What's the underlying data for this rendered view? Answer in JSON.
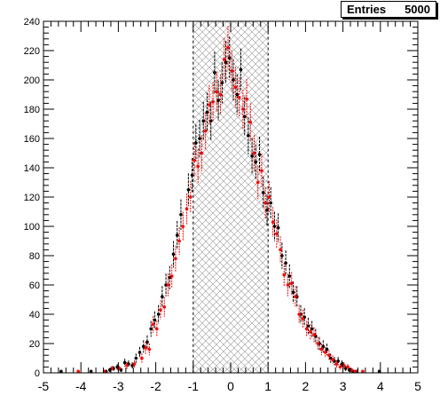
{
  "stats": {
    "label": "Entries",
    "value": "5000"
  },
  "chart_data": {
    "type": "scatter",
    "title": "",
    "xlabel": "",
    "ylabel": "",
    "xlim": [
      -5,
      5
    ],
    "ylim": [
      0,
      240
    ],
    "xticks": [
      -5,
      -4,
      -3,
      -2,
      -1,
      0,
      1,
      2,
      3,
      4,
      5
    ],
    "yticks": [
      0,
      20,
      40,
      60,
      80,
      100,
      120,
      140,
      160,
      180,
      200,
      220,
      240
    ],
    "grid": false,
    "highlight_band": {
      "x_from": -1,
      "x_to": 1,
      "style": "cross-hatch"
    },
    "series": [
      {
        "color": "#000000",
        "points": [
          {
            "x": -4.5,
            "y": 1
          },
          {
            "x": -3.7,
            "y": 1
          },
          {
            "x": -3.3,
            "y": 1
          },
          {
            "x": -3.2,
            "y": 2
          },
          {
            "x": -3.1,
            "y": 3
          },
          {
            "x": -3.0,
            "y": 4
          },
          {
            "x": -2.9,
            "y": 2
          },
          {
            "x": -2.8,
            "y": 7
          },
          {
            "x": -2.7,
            "y": 6
          },
          {
            "x": -2.6,
            "y": 5
          },
          {
            "x": -2.5,
            "y": 10
          },
          {
            "x": -2.4,
            "y": 14
          },
          {
            "x": -2.3,
            "y": 18
          },
          {
            "x": -2.2,
            "y": 21
          },
          {
            "x": -2.1,
            "y": 30
          },
          {
            "x": -2.0,
            "y": 36
          },
          {
            "x": -1.9,
            "y": 40
          },
          {
            "x": -1.8,
            "y": 52
          },
          {
            "x": -1.7,
            "y": 60
          },
          {
            "x": -1.6,
            "y": 65
          },
          {
            "x": -1.5,
            "y": 81
          },
          {
            "x": -1.4,
            "y": 94
          },
          {
            "x": -1.3,
            "y": 108
          },
          {
            "x": -1.1,
            "y": 125
          },
          {
            "x": -1.0,
            "y": 135
          },
          {
            "x": -0.9,
            "y": 157
          },
          {
            "x": -0.8,
            "y": 160
          },
          {
            "x": -0.7,
            "y": 172
          },
          {
            "x": -0.6,
            "y": 178
          },
          {
            "x": -0.5,
            "y": 172
          },
          {
            "x": -0.4,
            "y": 205
          },
          {
            "x": -0.3,
            "y": 186
          },
          {
            "x": -0.2,
            "y": 198
          },
          {
            "x": -0.1,
            "y": 212
          },
          {
            "x": 0.0,
            "y": 215
          },
          {
            "x": 0.1,
            "y": 200
          },
          {
            "x": 0.2,
            "y": 190
          },
          {
            "x": 0.3,
            "y": 207
          },
          {
            "x": 0.4,
            "y": 175
          },
          {
            "x": 0.5,
            "y": 162
          },
          {
            "x": 0.6,
            "y": 148
          },
          {
            "x": 0.7,
            "y": 144
          },
          {
            "x": 0.8,
            "y": 149
          },
          {
            "x": 0.9,
            "y": 123
          },
          {
            "x": 1.0,
            "y": 111
          },
          {
            "x": 1.1,
            "y": 116
          },
          {
            "x": 1.2,
            "y": 100
          },
          {
            "x": 1.3,
            "y": 99
          },
          {
            "x": 1.4,
            "y": 80
          },
          {
            "x": 1.5,
            "y": 75
          },
          {
            "x": 1.6,
            "y": 66
          },
          {
            "x": 1.7,
            "y": 55
          },
          {
            "x": 1.8,
            "y": 52
          },
          {
            "x": 1.9,
            "y": 40
          },
          {
            "x": 2.0,
            "y": 38
          },
          {
            "x": 2.1,
            "y": 32
          },
          {
            "x": 2.2,
            "y": 30
          },
          {
            "x": 2.3,
            "y": 25
          },
          {
            "x": 2.4,
            "y": 20
          },
          {
            "x": 2.5,
            "y": 18
          },
          {
            "x": 2.6,
            "y": 16
          },
          {
            "x": 2.7,
            "y": 10
          },
          {
            "x": 2.8,
            "y": 8
          },
          {
            "x": 2.9,
            "y": 8
          },
          {
            "x": 3.0,
            "y": 6
          },
          {
            "x": 3.1,
            "y": 3
          },
          {
            "x": 3.2,
            "y": 2
          },
          {
            "x": 3.3,
            "y": 1
          },
          {
            "x": 3.4,
            "y": 1
          },
          {
            "x": 4.0,
            "y": 1
          }
        ]
      },
      {
        "color": "#ff0000",
        "points": [
          {
            "x": -4.1,
            "y": 1
          },
          {
            "x": -3.4,
            "y": 1
          },
          {
            "x": -3.2,
            "y": 3
          },
          {
            "x": -3.0,
            "y": 3
          },
          {
            "x": -2.8,
            "y": 5
          },
          {
            "x": -2.6,
            "y": 6
          },
          {
            "x": -2.4,
            "y": 10
          },
          {
            "x": -2.3,
            "y": 17
          },
          {
            "x": -2.2,
            "y": 16
          },
          {
            "x": -2.1,
            "y": 33
          },
          {
            "x": -2.0,
            "y": 30
          },
          {
            "x": -1.9,
            "y": 43
          },
          {
            "x": -1.8,
            "y": 45
          },
          {
            "x": -1.7,
            "y": 60
          },
          {
            "x": -1.6,
            "y": 66
          },
          {
            "x": -1.5,
            "y": 78
          },
          {
            "x": -1.4,
            "y": 90
          },
          {
            "x": -1.3,
            "y": 100
          },
          {
            "x": -1.2,
            "y": 112
          },
          {
            "x": -1.1,
            "y": 120
          },
          {
            "x": -1.0,
            "y": 145
          },
          {
            "x": -0.9,
            "y": 141
          },
          {
            "x": -0.8,
            "y": 150
          },
          {
            "x": -0.7,
            "y": 165
          },
          {
            "x": -0.6,
            "y": 183
          },
          {
            "x": -0.5,
            "y": 185
          },
          {
            "x": -0.4,
            "y": 192
          },
          {
            "x": -0.3,
            "y": 190
          },
          {
            "x": -0.2,
            "y": 214
          },
          {
            "x": -0.1,
            "y": 222
          },
          {
            "x": 0.0,
            "y": 206
          },
          {
            "x": 0.1,
            "y": 195
          },
          {
            "x": 0.2,
            "y": 188
          },
          {
            "x": 0.3,
            "y": 180
          },
          {
            "x": 0.4,
            "y": 187
          },
          {
            "x": 0.5,
            "y": 171
          },
          {
            "x": 0.6,
            "y": 150
          },
          {
            "x": 0.7,
            "y": 130
          },
          {
            "x": 0.8,
            "y": 138
          },
          {
            "x": 0.9,
            "y": 116
          },
          {
            "x": 1.0,
            "y": 120
          },
          {
            "x": 1.1,
            "y": 103
          },
          {
            "x": 1.2,
            "y": 95
          },
          {
            "x": 1.3,
            "y": 84
          },
          {
            "x": 1.4,
            "y": 67
          },
          {
            "x": 1.5,
            "y": 60
          },
          {
            "x": 1.6,
            "y": 61
          },
          {
            "x": 1.7,
            "y": 52
          },
          {
            "x": 1.8,
            "y": 40
          },
          {
            "x": 1.9,
            "y": 37
          },
          {
            "x": 2.0,
            "y": 30
          },
          {
            "x": 2.1,
            "y": 28
          },
          {
            "x": 2.2,
            "y": 26
          },
          {
            "x": 2.3,
            "y": 20
          },
          {
            "x": 2.4,
            "y": 16
          },
          {
            "x": 2.5,
            "y": 14
          },
          {
            "x": 2.6,
            "y": 12
          },
          {
            "x": 2.7,
            "y": 9
          },
          {
            "x": 2.8,
            "y": 6
          },
          {
            "x": 2.9,
            "y": 4
          },
          {
            "x": 3.0,
            "y": 5
          },
          {
            "x": 3.1,
            "y": 4
          },
          {
            "x": 3.2,
            "y": 2
          },
          {
            "x": 3.3,
            "y": 1
          },
          {
            "x": 3.5,
            "y": 1
          }
        ]
      }
    ]
  }
}
